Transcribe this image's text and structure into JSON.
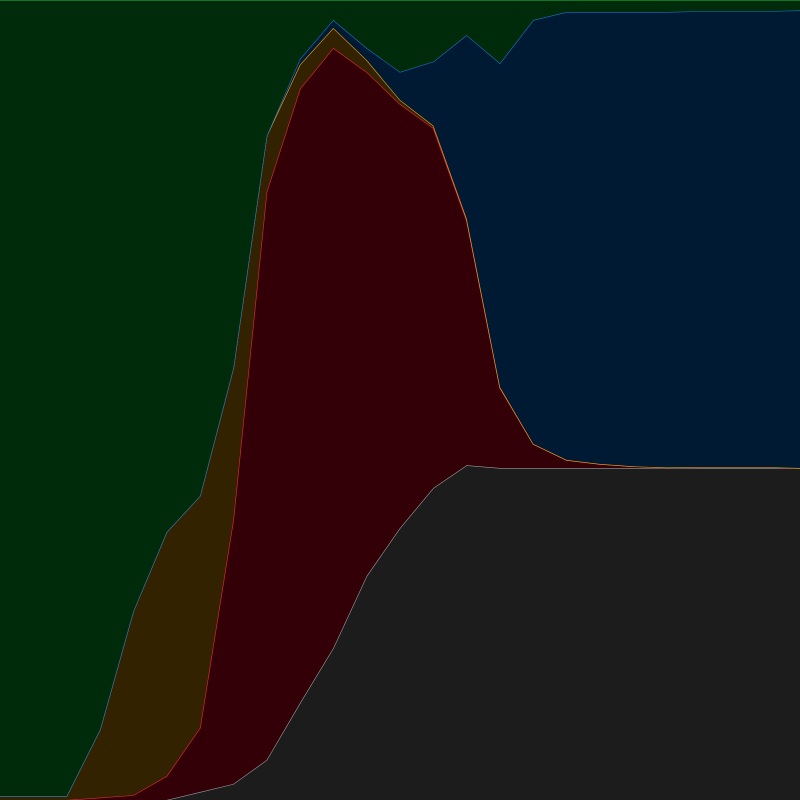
{
  "chart_data": {
    "type": "area",
    "stacked": true,
    "normalized": true,
    "title": "",
    "xlabel": "",
    "ylabel": "",
    "ylim": [
      0,
      1
    ],
    "grid": false,
    "legend": "none",
    "x": [
      0,
      1,
      2,
      3,
      4,
      5,
      6,
      7,
      8,
      9,
      10,
      11,
      12,
      13,
      14,
      15,
      16,
      17,
      18,
      19,
      20,
      21,
      22,
      23,
      24
    ],
    "series": [
      {
        "key": "gray",
        "color": "#1c1c1c",
        "stroke": "#9a9a9a",
        "values": [
          0.0,
          0.0,
          0.0,
          0.0,
          0.0,
          0.0,
          0.01,
          0.02,
          0.05,
          0.12,
          0.19,
          0.28,
          0.34,
          0.39,
          0.41,
          0.415,
          0.415,
          0.415,
          0.415,
          0.415,
          0.415,
          0.415,
          0.415,
          0.415,
          0.415
        ]
      },
      {
        "key": "red",
        "color": "#330008",
        "stroke": "#e8283c",
        "values": [
          0.0,
          0.0,
          0.0,
          0.003,
          0.006,
          0.03,
          0.08,
          0.33,
          0.71,
          0.76,
          0.75,
          0.63,
          0.53,
          0.45,
          0.3,
          0.1,
          0.03,
          0.01,
          0.005,
          0.002,
          0.001,
          0.001,
          0.001,
          0.001,
          0.0
        ]
      },
      {
        "key": "orange",
        "color": "#332200",
        "stroke": "#f2a91c",
        "values": [
          0.005,
          0.005,
          0.005,
          0.085,
          0.23,
          0.305,
          0.29,
          0.19,
          0.07,
          0.03,
          0.025,
          0.015,
          0.005,
          0.003,
          0.002,
          0.001,
          0.0,
          0.0,
          0.0,
          0.0,
          0.0,
          0.0,
          0.0,
          0.0,
          0.0
        ]
      },
      {
        "key": "blue",
        "color": "#001a33",
        "stroke": "#1a72c8",
        "values": [
          0.0,
          0.0,
          0.0,
          0.0,
          0.0,
          0.0,
          0.0,
          0.0,
          0.0,
          0.007,
          0.01,
          0.015,
          0.035,
          0.08,
          0.225,
          0.405,
          0.53,
          0.56,
          0.565,
          0.568,
          0.57,
          0.57,
          0.57,
          0.57,
          0.572
        ]
      },
      {
        "key": "green",
        "color": "#002b0a",
        "stroke": "#1fa03a",
        "values": [
          0.995,
          0.995,
          0.995,
          0.912,
          0.764,
          0.665,
          0.62,
          0.46,
          0.17,
          0.073,
          0.025,
          0.06,
          0.09,
          0.077,
          0.043,
          0.079,
          0.025,
          0.015,
          0.015,
          0.015,
          0.015,
          0.014,
          0.014,
          0.014,
          0.013
        ]
      }
    ]
  }
}
